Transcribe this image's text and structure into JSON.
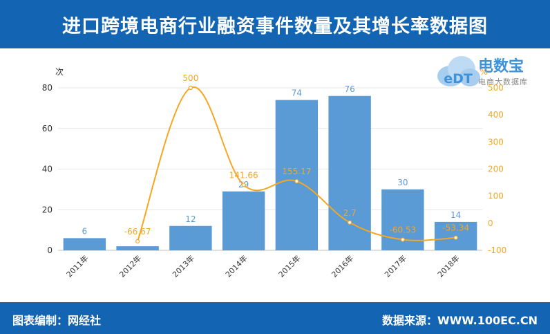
{
  "header": {
    "title": "进口跨境电商行业融资事件数量及其增长率数据图"
  },
  "footer": {
    "left": "图表编制：网经社",
    "right": "数据来源：WWW.100EC.CN"
  },
  "logo": {
    "brand": "电数宝",
    "sub": "电商大数据库",
    "mark": "eDT"
  },
  "chart_data": {
    "type": "bar",
    "categories": [
      "2011年",
      "2012年",
      "2013年",
      "2014年",
      "2015年",
      "2016年",
      "2017年",
      "2018年"
    ],
    "series": [
      {
        "values": [
          6,
          2,
          12,
          29,
          74,
          76,
          30,
          14
        ],
        "labels": [
          "6",
          "",
          "12",
          "29",
          "74",
          "76",
          "30",
          "14"
        ],
        "axis": "left",
        "type": "bar",
        "color": "#5b9bd5"
      },
      {
        "values": [
          null,
          -66.67,
          500,
          141.66,
          155.17,
          2.7,
          -60.53,
          -53.34
        ],
        "labels": [
          "",
          "-66.67",
          "500",
          "141.66",
          "155.17",
          "2.7",
          "-60.53",
          "-53.34"
        ],
        "axis": "right",
        "type": "line",
        "color": "#f5a623"
      }
    ],
    "left_axis": {
      "unit": "次",
      "ylim": [
        0,
        80
      ],
      "ticks": [
        0,
        20,
        40,
        60,
        80
      ]
    },
    "right_axis": {
      "unit": "%",
      "ylim": [
        -100,
        500
      ],
      "ticks": [
        -100,
        0,
        100,
        200,
        300,
        400,
        500
      ]
    },
    "grid": true
  }
}
